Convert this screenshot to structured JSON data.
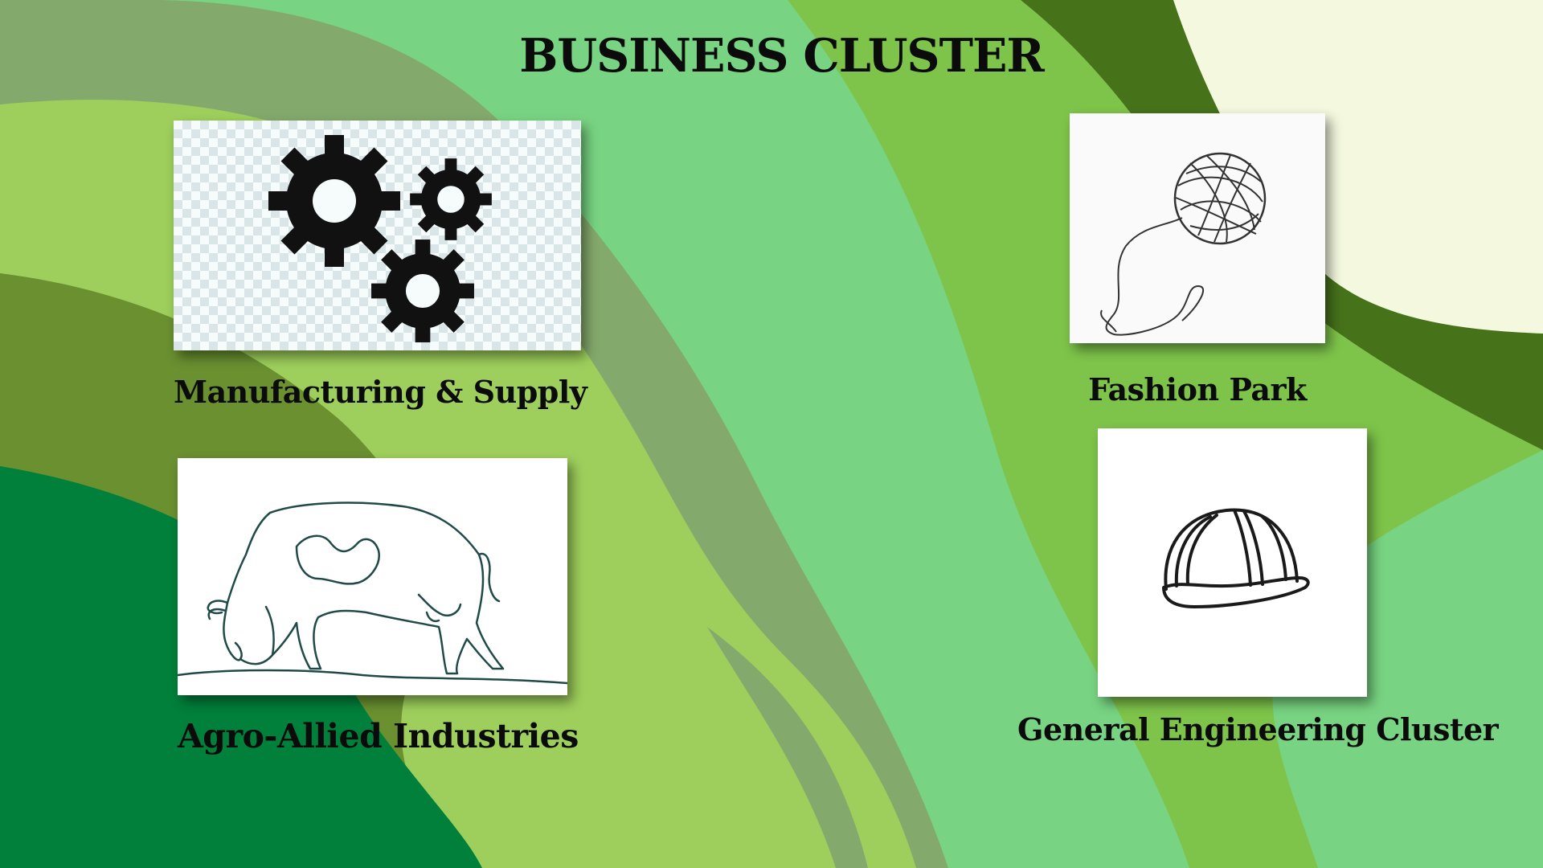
{
  "slide": {
    "title": "BUSINESS CLUSTER"
  },
  "clusters": [
    {
      "label": "Manufacturing & Supply",
      "icon": "gears-icon"
    },
    {
      "label": "Fashion Park",
      "icon": "yarn-ball-icon"
    },
    {
      "label": "Agro-Allied Industries",
      "icon": "cow-line-art-icon"
    },
    {
      "label": "General Engineering Cluster",
      "icon": "hard-hat-icon"
    }
  ],
  "colors": {
    "dark_green": "#00803a",
    "olive": "#6a9030",
    "sage": "#84a96c",
    "mint": "#78d482",
    "lime": "#9ecf5c",
    "grass": "#7ec44a",
    "forest": "#46721a",
    "cream": "#f3f8de",
    "text": "#0b0b0b"
  }
}
